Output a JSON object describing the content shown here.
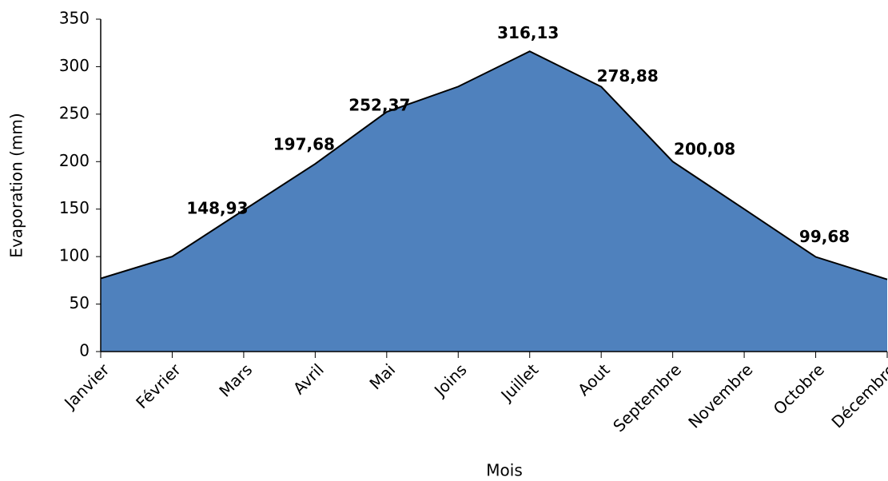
{
  "chart_data": {
    "type": "area",
    "categories": [
      "Janvier",
      "Février",
      "Mars",
      "Avril",
      "Mai",
      "Joins",
      "Juillet",
      "Aout",
      "Septembre",
      "Novembre",
      "Octobre",
      "Décembre"
    ],
    "values": [
      77,
      100,
      148.93,
      197.68,
      252.37,
      279,
      316.13,
      278.88,
      200.08,
      150,
      99.68,
      76
    ],
    "value_labels": [
      null,
      null,
      "148,93",
      "197,68",
      "252,37",
      null,
      "316,13",
      "278,88",
      "200,08",
      null,
      "99,68",
      null
    ],
    "color": "#4f81bd",
    "xlabel": "Mois",
    "ylabel": "Evaporation (mm)",
    "ylim": [
      0,
      350
    ],
    "yticks": [
      0,
      50,
      100,
      150,
      200,
      250,
      300,
      350
    ],
    "grid": false
  }
}
